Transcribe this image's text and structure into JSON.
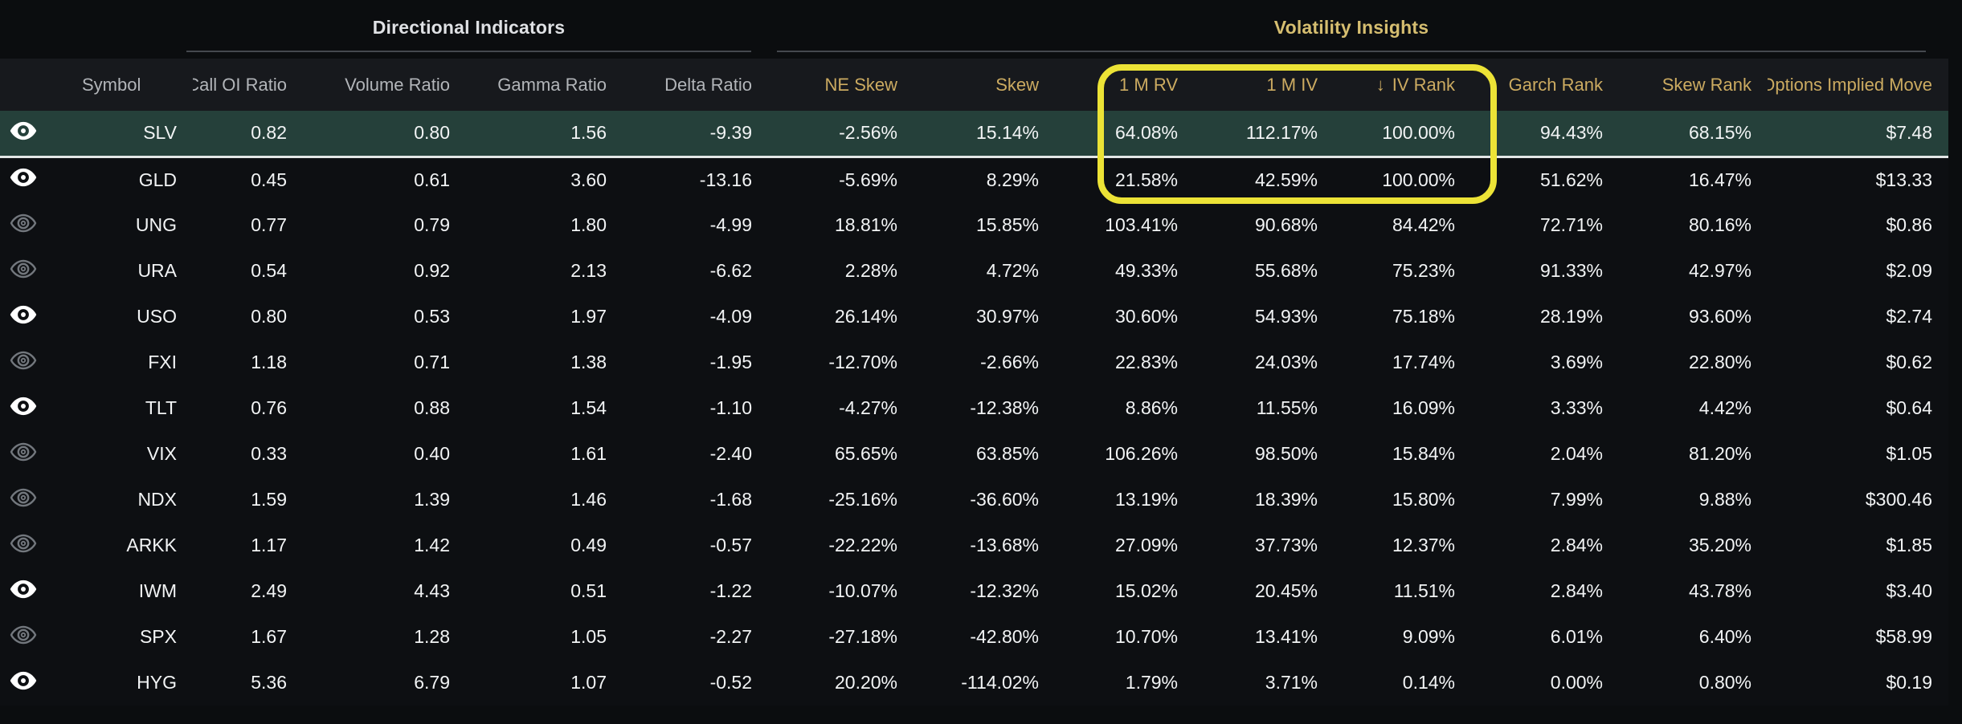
{
  "groups": [
    {
      "label": "Directional Indicators"
    },
    {
      "label": "Volatility Insights"
    }
  ],
  "sort_icon": "↓",
  "columns": [
    {
      "label": "",
      "name": "visibility",
      "tone": "gray"
    },
    {
      "label": "Symbol",
      "name": "symbol",
      "tone": "gray"
    },
    {
      "label": "Put/Call OI Ratio",
      "name": "put-call-oi-ratio",
      "tone": "gray"
    },
    {
      "label": "Volume Ratio",
      "name": "volume-ratio",
      "tone": "gray"
    },
    {
      "label": "Gamma Ratio",
      "name": "gamma-ratio",
      "tone": "gray"
    },
    {
      "label": "Delta Ratio",
      "name": "delta-ratio",
      "tone": "gray"
    },
    {
      "label": "NE Skew",
      "name": "ne-skew",
      "tone": "gold"
    },
    {
      "label": "Skew",
      "name": "skew",
      "tone": "gold"
    },
    {
      "label": "1 M RV",
      "name": "1m-rv",
      "tone": "gold"
    },
    {
      "label": "1 M IV",
      "name": "1m-iv",
      "tone": "gold"
    },
    {
      "label": "IV Rank",
      "name": "iv-rank",
      "tone": "gold",
      "sorted": "desc"
    },
    {
      "label": "Garch Rank",
      "name": "garch-rank",
      "tone": "gold"
    },
    {
      "label": "Skew Rank",
      "name": "skew-rank",
      "tone": "gold"
    },
    {
      "label": "Options Implied Move",
      "name": "options-implied-move",
      "tone": "gold"
    }
  ],
  "rows": [
    {
      "symbol": "SLV",
      "eye": "on",
      "selected": true,
      "values": [
        "0.82",
        "0.80",
        "1.56",
        "-9.39",
        "-2.56%",
        "15.14%",
        "64.08%",
        "112.17%",
        "100.00%",
        "94.43%",
        "68.15%",
        "$7.48"
      ]
    },
    {
      "symbol": "GLD",
      "eye": "on",
      "selected": false,
      "values": [
        "0.45",
        "0.61",
        "3.60",
        "-13.16",
        "-5.69%",
        "8.29%",
        "21.58%",
        "42.59%",
        "100.00%",
        "51.62%",
        "16.47%",
        "$13.33"
      ]
    },
    {
      "symbol": "UNG",
      "eye": "off",
      "selected": false,
      "values": [
        "0.77",
        "0.79",
        "1.80",
        "-4.99",
        "18.81%",
        "15.85%",
        "103.41%",
        "90.68%",
        "84.42%",
        "72.71%",
        "80.16%",
        "$0.86"
      ]
    },
    {
      "symbol": "URA",
      "eye": "off",
      "selected": false,
      "values": [
        "0.54",
        "0.92",
        "2.13",
        "-6.62",
        "2.28%",
        "4.72%",
        "49.33%",
        "55.68%",
        "75.23%",
        "91.33%",
        "42.97%",
        "$2.09"
      ]
    },
    {
      "symbol": "USO",
      "eye": "on",
      "selected": false,
      "values": [
        "0.80",
        "0.53",
        "1.97",
        "-4.09",
        "26.14%",
        "30.97%",
        "30.60%",
        "54.93%",
        "75.18%",
        "28.19%",
        "93.60%",
        "$2.74"
      ]
    },
    {
      "symbol": "FXI",
      "eye": "off",
      "selected": false,
      "values": [
        "1.18",
        "0.71",
        "1.38",
        "-1.95",
        "-12.70%",
        "-2.66%",
        "22.83%",
        "24.03%",
        "17.74%",
        "3.69%",
        "22.80%",
        "$0.62"
      ]
    },
    {
      "symbol": "TLT",
      "eye": "on",
      "selected": false,
      "values": [
        "0.76",
        "0.88",
        "1.54",
        "-1.10",
        "-4.27%",
        "-12.38%",
        "8.86%",
        "11.55%",
        "16.09%",
        "3.33%",
        "4.42%",
        "$0.64"
      ]
    },
    {
      "symbol": "VIX",
      "eye": "off",
      "selected": false,
      "values": [
        "0.33",
        "0.40",
        "1.61",
        "-2.40",
        "65.65%",
        "63.85%",
        "106.26%",
        "98.50%",
        "15.84%",
        "2.04%",
        "81.20%",
        "$1.05"
      ]
    },
    {
      "symbol": "NDX",
      "eye": "off",
      "selected": false,
      "values": [
        "1.59",
        "1.39",
        "1.46",
        "-1.68",
        "-25.16%",
        "-36.60%",
        "13.19%",
        "18.39%",
        "15.80%",
        "7.99%",
        "9.88%",
        "$300.46"
      ]
    },
    {
      "symbol": "ARKK",
      "eye": "off",
      "selected": false,
      "values": [
        "1.17",
        "1.42",
        "0.49",
        "-0.57",
        "-22.22%",
        "-13.68%",
        "27.09%",
        "37.73%",
        "12.37%",
        "2.84%",
        "35.20%",
        "$1.85"
      ]
    },
    {
      "symbol": "IWM",
      "eye": "on",
      "selected": false,
      "values": [
        "2.49",
        "4.43",
        "0.51",
        "-1.22",
        "-10.07%",
        "-12.32%",
        "15.02%",
        "20.45%",
        "11.51%",
        "2.84%",
        "43.78%",
        "$3.40"
      ]
    },
    {
      "symbol": "SPX",
      "eye": "off",
      "selected": false,
      "values": [
        "1.67",
        "1.28",
        "1.05",
        "-2.27",
        "-27.18%",
        "-42.80%",
        "10.70%",
        "13.41%",
        "9.09%",
        "6.01%",
        "6.40%",
        "$58.99"
      ]
    },
    {
      "symbol": "HYG",
      "eye": "on",
      "selected": false,
      "values": [
        "5.36",
        "6.79",
        "1.07",
        "-0.52",
        "20.20%",
        "-114.02%",
        "1.79%",
        "3.71%",
        "0.14%",
        "0.00%",
        "0.80%",
        "$0.19"
      ]
    }
  ],
  "colors": {
    "page_bg": "#0b0d0f",
    "rows_bg": "#0d0f12",
    "header_row_bg": "#17191d",
    "selected_row_bg": "#25403a",
    "selected_row_border": "#e3e6e6",
    "gold_header": "#ccab61",
    "gold_title": "#d6be70",
    "gray_header": "#b2b5b9",
    "text_white": "#f2f4f5",
    "annotation_yellow": "#ece336",
    "eye_active": "#ffffff",
    "eye_inactive": "#72777d"
  }
}
